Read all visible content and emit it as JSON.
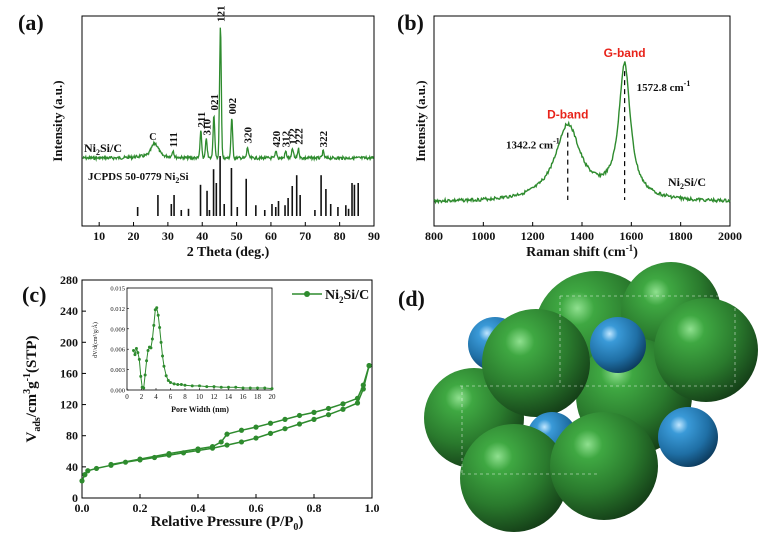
{
  "chart_data": [
    {
      "id": "a",
      "type": "line",
      "panel_label": "(a)",
      "xlabel": "2 Theta (deg.)",
      "ylabel": "Intensity (a.u.)",
      "xlim": [
        5,
        90
      ],
      "x_ticks": [
        10,
        20,
        30,
        40,
        50,
        60,
        70,
        80,
        90
      ],
      "sample_label": "Ni",
      "sample_sub": "2",
      "sample_suffix": "Si/C",
      "reference_label": "JCPDS 50-0779 Ni",
      "reference_sub": "2",
      "reference_suffix": "Si",
      "series_color": "#2e8b2e",
      "peaks": [
        {
          "x": 26.2,
          "h": 0.09,
          "label": "C"
        },
        {
          "x": 31.5,
          "h": 0.05,
          "label": "111"
        },
        {
          "x": 39.6,
          "h": 0.2,
          "label": "211"
        },
        {
          "x": 41.2,
          "h": 0.14,
          "label": "310"
        },
        {
          "x": 43.4,
          "h": 0.33,
          "label": "021"
        },
        {
          "x": 45.3,
          "h": 1.0,
          "label": "121"
        },
        {
          "x": 48.6,
          "h": 0.3,
          "label": "002"
        },
        {
          "x": 53.2,
          "h": 0.08,
          "label": "320"
        },
        {
          "x": 61.5,
          "h": 0.05,
          "label": "420"
        },
        {
          "x": 64.3,
          "h": 0.05,
          "label": "312"
        },
        {
          "x": 66.3,
          "h": 0.07,
          "label": "122"
        },
        {
          "x": 68.0,
          "h": 0.07,
          "label": "222"
        },
        {
          "x": 75.2,
          "h": 0.05,
          "label": "322"
        }
      ],
      "reference_sticks": [
        {
          "x": 21.2,
          "h": 0.15
        },
        {
          "x": 27.1,
          "h": 0.35
        },
        {
          "x": 31.0,
          "h": 0.2
        },
        {
          "x": 31.8,
          "h": 0.35
        },
        {
          "x": 33.9,
          "h": 0.1
        },
        {
          "x": 36.0,
          "h": 0.12
        },
        {
          "x": 39.5,
          "h": 0.52
        },
        {
          "x": 41.4,
          "h": 0.42
        },
        {
          "x": 42.1,
          "h": 0.1
        },
        {
          "x": 43.3,
          "h": 0.78
        },
        {
          "x": 44.1,
          "h": 0.55
        },
        {
          "x": 45.2,
          "h": 1.0
        },
        {
          "x": 46.4,
          "h": 0.2
        },
        {
          "x": 48.5,
          "h": 0.8
        },
        {
          "x": 50.2,
          "h": 0.15
        },
        {
          "x": 52.8,
          "h": 0.62
        },
        {
          "x": 55.6,
          "h": 0.18
        },
        {
          "x": 58.2,
          "h": 0.1
        },
        {
          "x": 60.3,
          "h": 0.2
        },
        {
          "x": 61.4,
          "h": 0.15
        },
        {
          "x": 62.2,
          "h": 0.25
        },
        {
          "x": 64.1,
          "h": 0.18
        },
        {
          "x": 65.0,
          "h": 0.3
        },
        {
          "x": 66.2,
          "h": 0.5
        },
        {
          "x": 67.5,
          "h": 0.68
        },
        {
          "x": 68.5,
          "h": 0.35
        },
        {
          "x": 72.8,
          "h": 0.1
        },
        {
          "x": 74.6,
          "h": 0.68
        },
        {
          "x": 76.0,
          "h": 0.45
        },
        {
          "x": 77.4,
          "h": 0.2
        },
        {
          "x": 79.5,
          "h": 0.15
        },
        {
          "x": 81.8,
          "h": 0.18
        },
        {
          "x": 82.6,
          "h": 0.12
        },
        {
          "x": 83.6,
          "h": 0.55
        },
        {
          "x": 84.3,
          "h": 0.52
        },
        {
          "x": 85.4,
          "h": 0.55
        }
      ]
    },
    {
      "id": "b",
      "type": "line",
      "panel_label": "(b)",
      "xlabel": "Raman shift (cm",
      "xlabel_sup": "-1",
      "xlabel_end": ")",
      "ylabel": "Intensity (a.u.)",
      "xlim": [
        800,
        2000
      ],
      "x_ticks": [
        800,
        1000,
        1200,
        1400,
        1600,
        1800,
        2000
      ],
      "series_color": "#2e8b2e",
      "sample_label": "Ni",
      "sample_sub": "2",
      "sample_suffix": "Si/C",
      "bands": [
        {
          "name": "D-band",
          "x": 1342.2,
          "value_label": "1342.2 cm",
          "value_sup": "-1",
          "rel_height": 0.55
        },
        {
          "name": "G-band",
          "x": 1572.8,
          "value_label": "1572.8 cm",
          "value_sup": "-1",
          "rel_height": 1.0
        }
      ],
      "annotation_color": "#e8231a"
    },
    {
      "id": "c",
      "type": "line",
      "panel_label": "(c)",
      "xlabel": "Relative Pressure (P/P",
      "xlabel_sub": "0",
      "xlabel_end": ")",
      "ylabel_parts": [
        "V",
        "ads",
        "/cm",
        "3",
        "g",
        "-1",
        "(STP)"
      ],
      "xlim": [
        0.0,
        1.0
      ],
      "ylim": [
        0,
        280
      ],
      "x_ticks": [
        0.0,
        0.2,
        0.4,
        0.6,
        0.8,
        1.0
      ],
      "y_ticks": [
        0,
        40,
        80,
        120,
        160,
        200,
        240,
        280
      ],
      "series_color": "#2e8b2e",
      "legend": {
        "name_main": "Ni",
        "name_sub": "2",
        "name_suffix": "Si/C",
        "placement": "top-right"
      },
      "adsorption": {
        "x": [
          0.0,
          0.01,
          0.02,
          0.05,
          0.1,
          0.15,
          0.2,
          0.25,
          0.3,
          0.35,
          0.4,
          0.45,
          0.5,
          0.55,
          0.6,
          0.65,
          0.7,
          0.75,
          0.8,
          0.85,
          0.9,
          0.95,
          0.97,
          0.99
        ],
        "y": [
          22,
          30,
          35,
          38,
          42,
          46,
          49,
          52,
          55,
          58,
          61,
          64,
          68,
          72,
          77,
          83,
          89,
          95,
          101,
          107,
          114,
          122,
          140,
          170
        ]
      },
      "desorption": {
        "x": [
          0.99,
          0.97,
          0.95,
          0.9,
          0.85,
          0.8,
          0.75,
          0.7,
          0.65,
          0.6,
          0.55,
          0.5,
          0.48,
          0.45,
          0.4,
          0.3,
          0.2,
          0.1
        ],
        "y": [
          170,
          145,
          128,
          121,
          115,
          110,
          106,
          101,
          96,
          91,
          87,
          82,
          72,
          66,
          63,
          57,
          50,
          43
        ]
      },
      "inset": {
        "xlabel": "Pore Width (nm)",
        "ylabel": "dV/d(cm³/g/Å)",
        "xlim": [
          0,
          20
        ],
        "ylim": [
          0,
          0.015
        ],
        "x_ticks": [
          0,
          2,
          4,
          6,
          8,
          10,
          12,
          14,
          16,
          18,
          20
        ],
        "y_ticks": [
          0.0,
          0.003,
          0.006,
          0.009,
          0.012,
          0.015
        ],
        "y_tick_labels": [
          "0.000",
          "0.003",
          "0.006",
          "0.009",
          "0.012",
          "0.015"
        ],
        "x": [
          0.9,
          1.1,
          1.3,
          1.5,
          1.7,
          1.9,
          2.1,
          2.3,
          2.5,
          2.7,
          2.9,
          3.1,
          3.3,
          3.5,
          3.7,
          3.9,
          4.1,
          4.3,
          4.5,
          4.7,
          4.9,
          5.1,
          5.4,
          5.7,
          6.0,
          6.5,
          7.0,
          7.5,
          8.0,
          9.0,
          10.0,
          11.0,
          12.0,
          13.0,
          14.0,
          15.0,
          16.0,
          17.0,
          18.0,
          19.0,
          20.0
        ],
        "y": [
          0.0058,
          0.0052,
          0.0061,
          0.0055,
          0.0045,
          0.002,
          0.0004,
          0.0003,
          0.0022,
          0.0043,
          0.0058,
          0.0063,
          0.0062,
          0.0075,
          0.0095,
          0.0118,
          0.0121,
          0.011,
          0.0092,
          0.007,
          0.005,
          0.0035,
          0.0021,
          0.0014,
          0.0011,
          0.0009,
          0.0008,
          0.0008,
          0.0007,
          0.0006,
          0.0006,
          0.0005,
          0.0005,
          0.0004,
          0.0004,
          0.0004,
          0.0003,
          0.0003,
          0.0003,
          0.0003,
          0.0002
        ]
      }
    }
  ],
  "panel_d": {
    "panel_label": "(d)",
    "ni_color": "#2f7d32",
    "si_color": "#2a86c4"
  }
}
